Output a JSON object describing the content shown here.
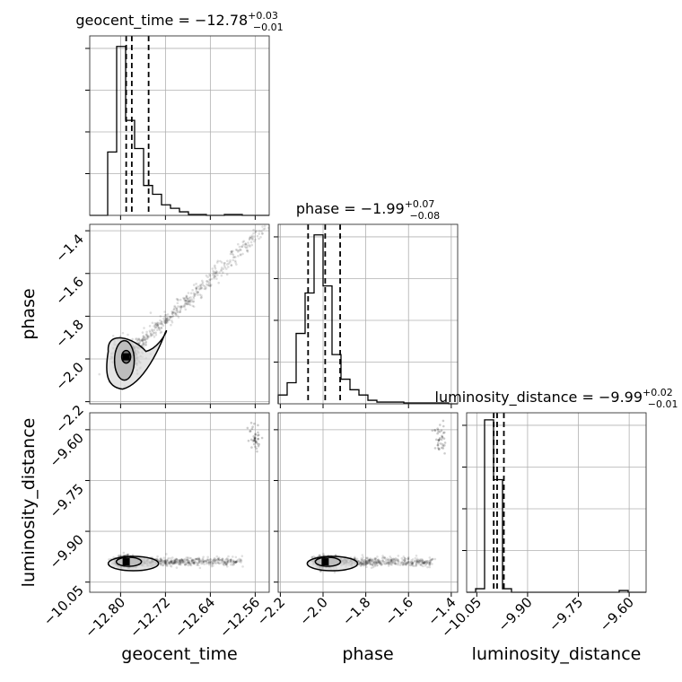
{
  "chart_data": {
    "type": "corner",
    "parameters": [
      "geocent_time",
      "phase",
      "luminosity_distance"
    ],
    "titles": [
      {
        "param": "geocent_time",
        "label": "geocent_time",
        "median": "−12.78",
        "plus": "+0.03",
        "minus": "−0.01"
      },
      {
        "param": "phase",
        "label": "phase",
        "median": "−1.99",
        "plus": "+0.07",
        "minus": "−0.08"
      },
      {
        "param": "luminosity_distance",
        "label": "luminosity_distance",
        "median": "−9.99",
        "plus": "+0.02",
        "minus": "−0.01"
      }
    ],
    "axes": {
      "geocent_time": {
        "range": [
          -12.855,
          -12.535
        ],
        "ticks": [
          -12.8,
          -12.72,
          -12.64,
          -12.56
        ],
        "tick_labels": [
          "−12.80",
          "−12.72",
          "−12.64",
          "−12.56"
        ]
      },
      "phase": {
        "range": [
          -2.21,
          -1.37
        ],
        "ticks": [
          -2.2,
          -2.0,
          -1.8,
          -1.6,
          -1.4
        ],
        "tick_labels": [
          "−2.2",
          "−2.0",
          "−1.8",
          "−1.6",
          "−1.4"
        ]
      },
      "luminosity_distance": {
        "range": [
          -10.08,
          -9.55
        ],
        "ticks": [
          -10.05,
          -9.9,
          -9.75,
          -9.6
        ],
        "tick_labels": [
          "−10.05",
          "−9.90",
          "−9.75",
          "−9.60"
        ]
      }
    },
    "y_axes_left": {
      "phase": {
        "ticks": [
          -1.4,
          -1.6,
          -1.8,
          -2.0,
          -2.2
        ],
        "tick_labels": [
          "−1.4",
          "−1.6",
          "−1.8",
          "−2.0",
          "−2.2"
        ]
      },
      "luminosity_distance": {
        "ticks": [
          -9.6,
          -9.75,
          -9.9,
          -10.05
        ],
        "tick_labels": [
          "−9.60",
          "−9.75",
          "−9.90",
          "−10.05"
        ]
      }
    },
    "histograms": {
      "geocent_time": {
        "bin_edges": [
          -12.855,
          -12.839,
          -12.823,
          -12.807,
          -12.791,
          -12.775,
          -12.759,
          -12.743,
          -12.727,
          -12.711,
          -12.695,
          -12.679,
          -12.663,
          -12.647,
          -12.631,
          -12.615,
          -12.599,
          -12.583,
          -12.567,
          -12.551,
          -12.535
        ],
        "counts": [
          0,
          0,
          0.36,
          0.96,
          0.54,
          0.38,
          0.17,
          0.12,
          0.06,
          0.04,
          0.02,
          0.005,
          0.005,
          0,
          0,
          0.005,
          0.005,
          0,
          0,
          0
        ],
        "ymax": 1.02,
        "quantiles": [
          -12.79,
          -12.78,
          -12.75
        ]
      },
      "phase": {
        "bin_edges": [
          -2.21,
          -2.168,
          -2.126,
          -2.084,
          -2.042,
          -2.0,
          -1.958,
          -1.916,
          -1.874,
          -1.832,
          -1.79,
          -1.748,
          -1.706,
          -1.664,
          -1.622,
          -1.58,
          -1.538,
          -1.496,
          -1.454,
          -1.412,
          -1.37
        ],
        "counts": [
          0.05,
          0.12,
          0.4,
          0.63,
          0.96,
          0.67,
          0.28,
          0.14,
          0.08,
          0.05,
          0.02,
          0.01,
          0.01,
          0.01,
          0.005,
          0.005,
          0.005,
          0.005,
          0.005,
          0
        ],
        "ymax": 1.02,
        "quantiles": [
          -2.07,
          -1.99,
          -1.92
        ]
      },
      "luminosity_distance": {
        "bin_edges": [
          -10.08,
          -10.0535,
          -10.027,
          -10.0005,
          -9.974,
          -9.9475,
          -9.921,
          -9.8945,
          -9.868,
          -9.8415,
          -9.815,
          -9.7885,
          -9.762,
          -9.7355,
          -9.709,
          -9.6825,
          -9.656,
          -9.6295,
          -9.603,
          -9.5765,
          -9.55
        ],
        "counts": [
          0,
          0.02,
          0.98,
          0.64,
          0.02,
          0,
          0,
          0,
          0,
          0,
          0,
          0,
          0,
          0,
          0,
          0,
          0,
          0.01,
          0,
          0
        ],
        "ymax": 1.02,
        "quantiles": [
          -10.0,
          -9.99,
          -9.97
        ]
      }
    },
    "scatter_2d": [
      {
        "x": "geocent_time",
        "y": "phase",
        "mode": "positive-correlation",
        "center": [
          -12.79,
          -1.99
        ],
        "end": [
          -12.54,
          -1.38
        ]
      },
      {
        "x": "geocent_time",
        "y": "luminosity_distance",
        "mode": "horizontal-band",
        "center": [
          -12.79,
          -9.99
        ],
        "tail": [
          -12.56,
          -9.63
        ]
      },
      {
        "x": "phase",
        "y": "luminosity_distance",
        "mode": "horizontal-band",
        "center": [
          -1.99,
          -9.99
        ],
        "tail": [
          -1.45,
          -9.63
        ]
      }
    ],
    "grid": true
  }
}
